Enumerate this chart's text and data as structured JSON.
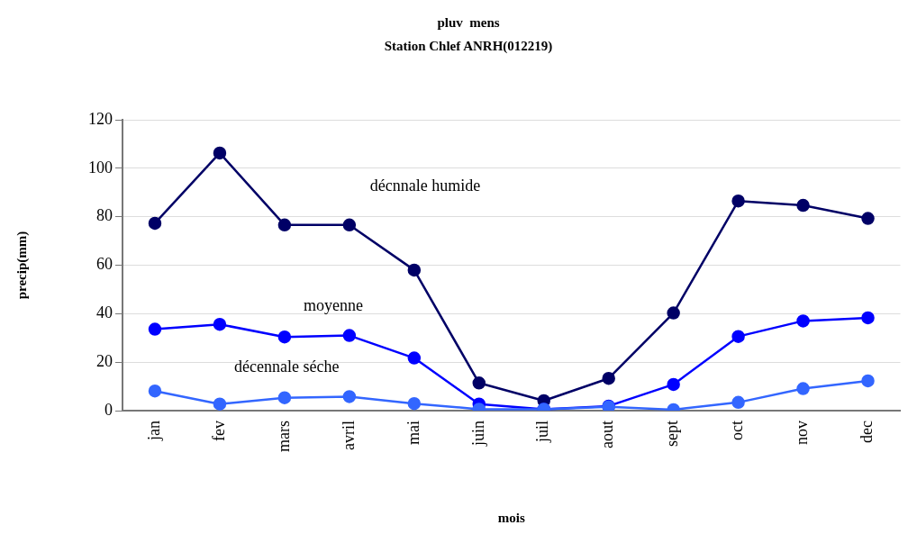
{
  "chart_data": {
    "type": "line",
    "title": "pluv  mens",
    "subtitle": "Station Chlef ANRH(012219)",
    "xlabel": "mois",
    "ylabel": "precip(mm)",
    "categories": [
      "jan",
      "fev",
      "mars",
      "avril",
      "mai",
      "juin",
      "juil",
      "aout",
      "sept",
      "oct",
      "nov",
      "dec"
    ],
    "series": [
      {
        "name": "décnnale humide",
        "color": "#000066",
        "values": [
          77.3,
          106.3,
          76.6,
          76.6,
          58,
          11.4,
          4.1,
          13.3,
          40.3,
          86.5,
          84.7,
          79.3
        ]
      },
      {
        "name": "moyenne",
        "color": "#0000ff",
        "values": [
          33.6,
          35.6,
          30.4,
          31,
          21.7,
          2.7,
          0.6,
          1.9,
          10.8,
          30.6,
          37,
          38.3
        ]
      },
      {
        "name": "décennale séche",
        "color": "#3366ff",
        "values": [
          8.1,
          2.7,
          5.3,
          5.8,
          2.9,
          0.6,
          0.6,
          1.6,
          0.4,
          3.4,
          9.1,
          12.3
        ]
      }
    ],
    "ylim": [
      0,
      120
    ],
    "yticks": [
      0,
      20,
      40,
      60,
      80,
      100,
      120
    ],
    "grid": "y",
    "legend": false,
    "marker": "circle",
    "line_style": "solid"
  }
}
